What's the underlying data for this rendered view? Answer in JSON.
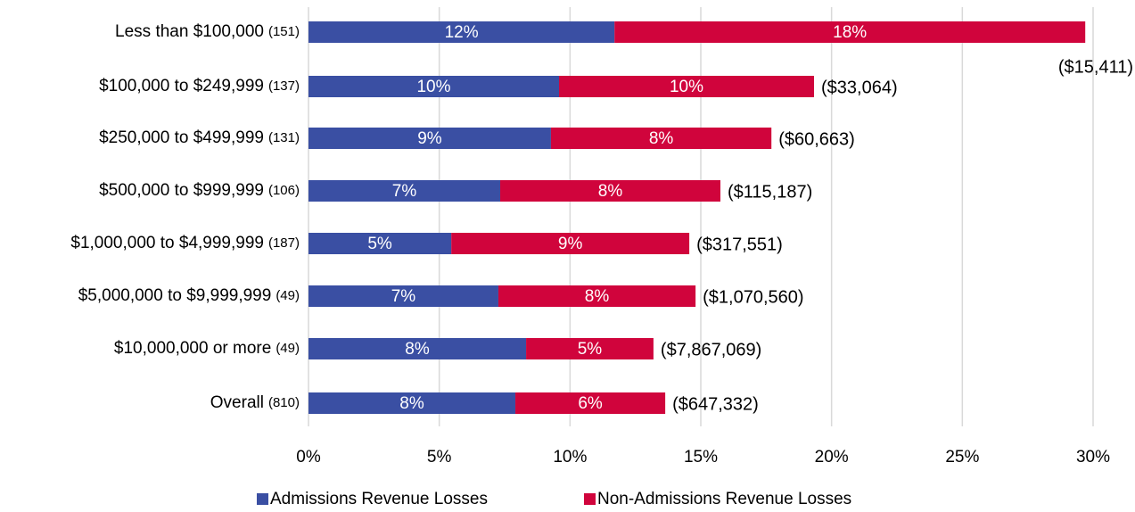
{
  "chart_data": {
    "type": "stacked-bar-horizontal",
    "categories": [
      "Less than $100,000",
      "$100,000 to $249,999",
      "$250,000 to $499,999",
      "$500,000 to $999,999",
      "$1,000,000 to $4,999,999",
      "$5,000,000 to $9,999,999",
      "$10,000,000 or more",
      "Overall"
    ],
    "category_counts": [
      "(151)",
      "(137)",
      "(131)",
      "(106)",
      "(187)",
      "(49)",
      "(49)",
      "(810)"
    ],
    "series": [
      {
        "name": "Admissions Revenue Losses",
        "color": "#3a4fa3",
        "values": [
          11.7,
          9.58,
          9.27,
          7.33,
          5.46,
          7.26,
          8.32,
          7.91
        ],
        "value_labels": [
          "12%",
          "10%",
          "9%",
          "7%",
          "5%",
          "7%",
          "8%",
          "8%"
        ]
      },
      {
        "name": "Non-Admissions Revenue Losses",
        "color": "#d0043c",
        "values": [
          18.0,
          9.75,
          8.43,
          8.42,
          9.1,
          7.54,
          4.87,
          5.73
        ],
        "value_labels": [
          "18%",
          "10%",
          "8%",
          "8%",
          "9%",
          "8%",
          "5%",
          "6%"
        ]
      }
    ],
    "annotations": [
      "($15,411)",
      "($33,064)",
      "($60,663)",
      "($115,187)",
      "($317,551)",
      "($1,070,560)",
      "($7,867,069)",
      "($647,332)"
    ],
    "xlim": [
      0,
      30
    ],
    "xticks": [
      {
        "value": 0,
        "label": "0%"
      },
      {
        "value": 5,
        "label": "5%"
      },
      {
        "value": 10,
        "label": "10%"
      },
      {
        "value": 15,
        "label": "15%"
      },
      {
        "value": 20,
        "label": "20%"
      },
      {
        "value": 25,
        "label": "25%"
      },
      {
        "value": 30,
        "label": "30%"
      }
    ],
    "grid": true,
    "legend": "bottom"
  }
}
